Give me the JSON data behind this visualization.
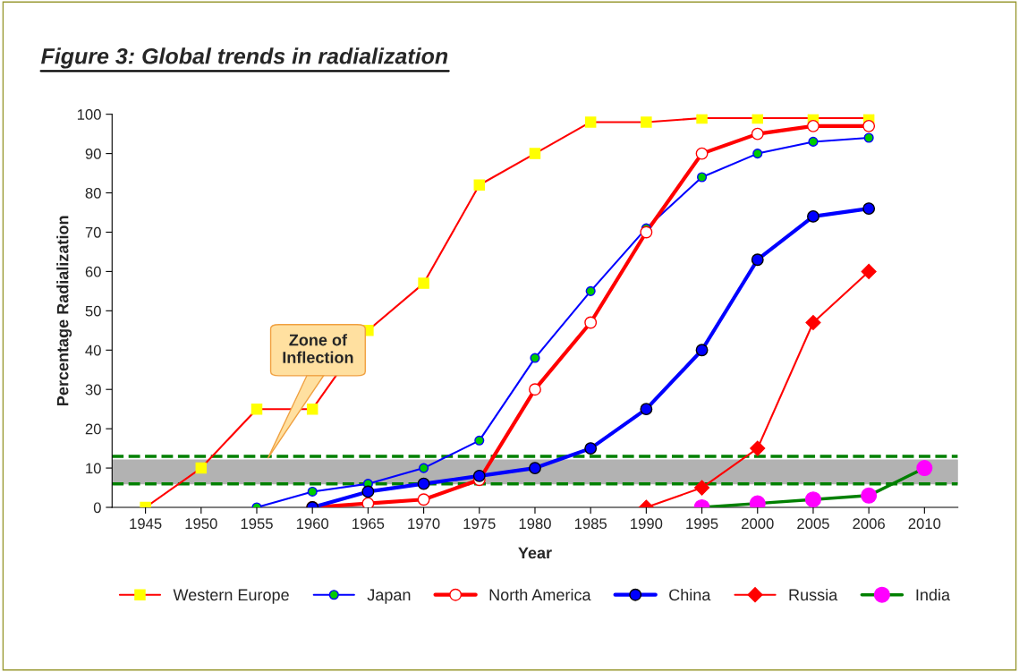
{
  "chart_data": {
    "type": "line",
    "title": "Figure 3: Global trends in radialization",
    "xlabel": "Year",
    "ylabel": "Percentage Radialization",
    "categories": [
      "1945",
      "1950",
      "1955",
      "1960",
      "1965",
      "1970",
      "1975",
      "1980",
      "1985",
      "1990",
      "1995",
      "2000",
      "2005",
      "2006",
      "2010"
    ],
    "series": [
      {
        "name": "Western Europe",
        "color": "#ff0000",
        "marker": "square",
        "values": [
          0,
          10,
          25,
          25,
          45,
          57,
          82,
          90,
          98,
          98,
          99,
          99,
          99,
          99,
          null
        ]
      },
      {
        "name": "Japan",
        "color": "#0000ff",
        "marker": "circle",
        "values": [
          null,
          null,
          0,
          4,
          6,
          10,
          17,
          38,
          55,
          71,
          84,
          90,
          93,
          94,
          null
        ]
      },
      {
        "name": "North America",
        "color": "#ff0000",
        "marker": "circle",
        "values": [
          null,
          null,
          null,
          0,
          1,
          2,
          7,
          30,
          47,
          70,
          90,
          95,
          97,
          97,
          null
        ]
      },
      {
        "name": "China",
        "color": "#0000ff",
        "marker": "circle",
        "values": [
          null,
          null,
          null,
          0,
          4,
          6,
          8,
          10,
          15,
          25,
          40,
          63,
          74,
          76,
          null
        ]
      },
      {
        "name": "Russia",
        "color": "#ff0000",
        "marker": "diamond",
        "values": [
          null,
          null,
          null,
          null,
          null,
          null,
          null,
          null,
          null,
          0,
          5,
          15,
          47,
          60,
          null
        ]
      },
      {
        "name": "India",
        "color": "#008000",
        "marker": "circle",
        "values": [
          null,
          null,
          null,
          null,
          null,
          null,
          null,
          null,
          null,
          null,
          0,
          1,
          2,
          3,
          10
        ]
      }
    ],
    "ylim": [
      0,
      100
    ],
    "yticks": [
      0,
      10,
      20,
      30,
      40,
      50,
      60,
      70,
      80,
      90,
      100
    ],
    "bands": [
      {
        "axis": "y",
        "from": 6,
        "to": 12,
        "color": "#b2b2b2"
      }
    ],
    "ref_lines": [
      {
        "axis": "y",
        "value": 6,
        "color": "#008000",
        "line_style": "dashed"
      },
      {
        "axis": "y",
        "value": 13,
        "color": "#008000",
        "line_style": "dashed"
      }
    ],
    "annotations": [
      "Zone of\nInflection"
    ],
    "grid": false,
    "legend": "bottom"
  }
}
